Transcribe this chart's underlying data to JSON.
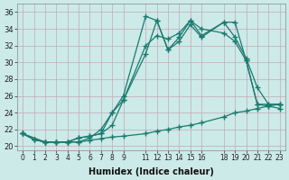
{
  "title": "",
  "xlabel": "Humidex (Indice chaleur)",
  "ylabel": "",
  "bg_color": "#cceae8",
  "grid_color": "#c4a8b8",
  "line_color": "#1a7a6e",
  "xlim": [
    -0.5,
    23.5
  ],
  "ylim": [
    19.5,
    37
  ],
  "xticks": [
    0,
    1,
    2,
    3,
    4,
    5,
    6,
    7,
    8,
    9,
    11,
    12,
    13,
    14,
    15,
    16,
    18,
    19,
    20,
    21,
    22,
    23
  ],
  "yticks": [
    20,
    22,
    24,
    26,
    28,
    30,
    32,
    34,
    36
  ],
  "line1_x": [
    0,
    1,
    2,
    3,
    4,
    5,
    6,
    7,
    8,
    9,
    11,
    12,
    13,
    14,
    15,
    16,
    18,
    19,
    20,
    21,
    22,
    23
  ],
  "line1_y": [
    21.5,
    20.8,
    20.5,
    20.5,
    20.5,
    20.5,
    20.7,
    20.9,
    21.1,
    21.2,
    21.5,
    21.8,
    22.0,
    22.3,
    22.5,
    22.8,
    23.5,
    24.0,
    24.2,
    24.5,
    24.8,
    25.0
  ],
  "line2_x": [
    0,
    2,
    3,
    4,
    5,
    6,
    7,
    8,
    9,
    11,
    12,
    13,
    14,
    15,
    16,
    18,
    19,
    20,
    21,
    22,
    23
  ],
  "line2_y": [
    21.5,
    20.5,
    20.5,
    20.5,
    20.5,
    21.0,
    22.0,
    24.0,
    26.0,
    35.5,
    35.0,
    31.5,
    33.0,
    35.0,
    33.2,
    34.8,
    34.8,
    30.2,
    25.0,
    25.0,
    25.0
  ],
  "line3_x": [
    0,
    1,
    2,
    3,
    4,
    5,
    6,
    7,
    8,
    9,
    11,
    12,
    13,
    14,
    15,
    16,
    18,
    19,
    20,
    21,
    22,
    23
  ],
  "line3_y": [
    21.5,
    20.8,
    20.5,
    20.5,
    20.5,
    21.0,
    21.2,
    21.5,
    22.5,
    25.5,
    31.0,
    35.0,
    31.5,
    32.5,
    34.5,
    33.0,
    34.8,
    33.0,
    30.5,
    27.0,
    25.0,
    25.0
  ],
  "line4_x": [
    0,
    1,
    2,
    3,
    4,
    5,
    6,
    7,
    8,
    9,
    11,
    12,
    13,
    14,
    15,
    16,
    18,
    19,
    20,
    21,
    22,
    23
  ],
  "line4_y": [
    21.5,
    20.8,
    20.5,
    20.5,
    20.5,
    21.0,
    21.2,
    21.5,
    24.0,
    25.5,
    32.0,
    33.2,
    32.8,
    33.5,
    35.0,
    34.0,
    33.5,
    32.5,
    30.2,
    25.0,
    24.8,
    24.5
  ]
}
